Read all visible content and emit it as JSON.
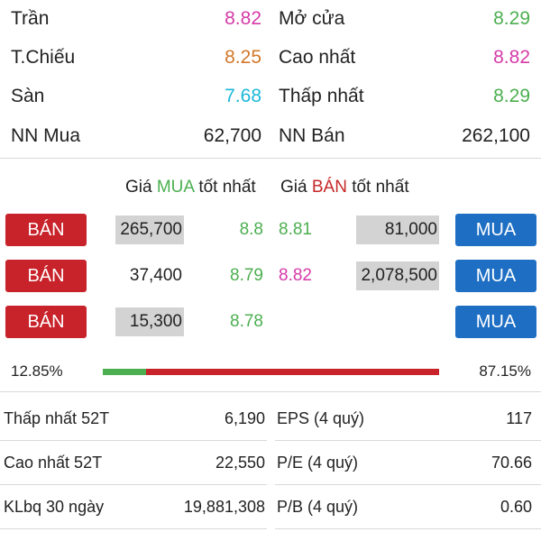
{
  "summary": {
    "rows": [
      {
        "left_label": "Trần",
        "left_value": "8.82",
        "right_label": "Mở cửa",
        "right_value": "8.29"
      },
      {
        "left_label": "T.Chiếu",
        "left_value": "8.25",
        "right_label": "Cao nhất",
        "right_value": "8.82"
      },
      {
        "left_label": "Sàn",
        "left_value": "7.68",
        "right_label": "Thấp nhất",
        "right_value": "8.29"
      },
      {
        "left_label": "NN Mua",
        "left_value": "62,700",
        "right_label": "NN Bán",
        "right_value": "262,100"
      }
    ]
  },
  "order_book": {
    "bid_header": {
      "prefix": "Giá ",
      "highlight": "MUA",
      "suffix": " tốt nhất"
    },
    "ask_header": {
      "prefix": "Giá ",
      "highlight": "BÁN",
      "suffix": " tốt nhất"
    },
    "sell_button_label": "BÁN",
    "buy_button_label": "MUA",
    "rows": [
      {
        "bid_volume": "265,700",
        "bid_price": "8.8",
        "ask_price": "8.81",
        "ask_volume": "81,000"
      },
      {
        "bid_volume": "37,400",
        "bid_price": "8.79",
        "ask_price": "8.82",
        "ask_volume": "2,078,500"
      },
      {
        "bid_volume": "15,300",
        "bid_price": "8.78",
        "ask_price": "",
        "ask_volume": ""
      }
    ],
    "buy_ratio_label": "12.85%",
    "sell_ratio_label": "87.15%",
    "buy_ratio": 0.1285
  },
  "stats": {
    "rows": [
      {
        "left_label": "Thấp nhất 52T",
        "left_value": "6,190",
        "right_label": "EPS (4 quý)",
        "right_value": "117"
      },
      {
        "left_label": "Cao nhất 52T",
        "left_value": "22,550",
        "right_label": "P/E (4 quý)",
        "right_value": "70.66"
      },
      {
        "left_label": "KLbq 30 ngày",
        "left_value": "19,881,308",
        "right_label": "P/B (4 quý)",
        "right_value": "0.60"
      }
    ]
  },
  "colors": {
    "up": "#4caf50",
    "ceiling": "#d63aa8",
    "reference": "#d2782a",
    "floor": "#1cb8d9",
    "sell_button": "#c8222a",
    "buy_button": "#1e6fc4"
  }
}
